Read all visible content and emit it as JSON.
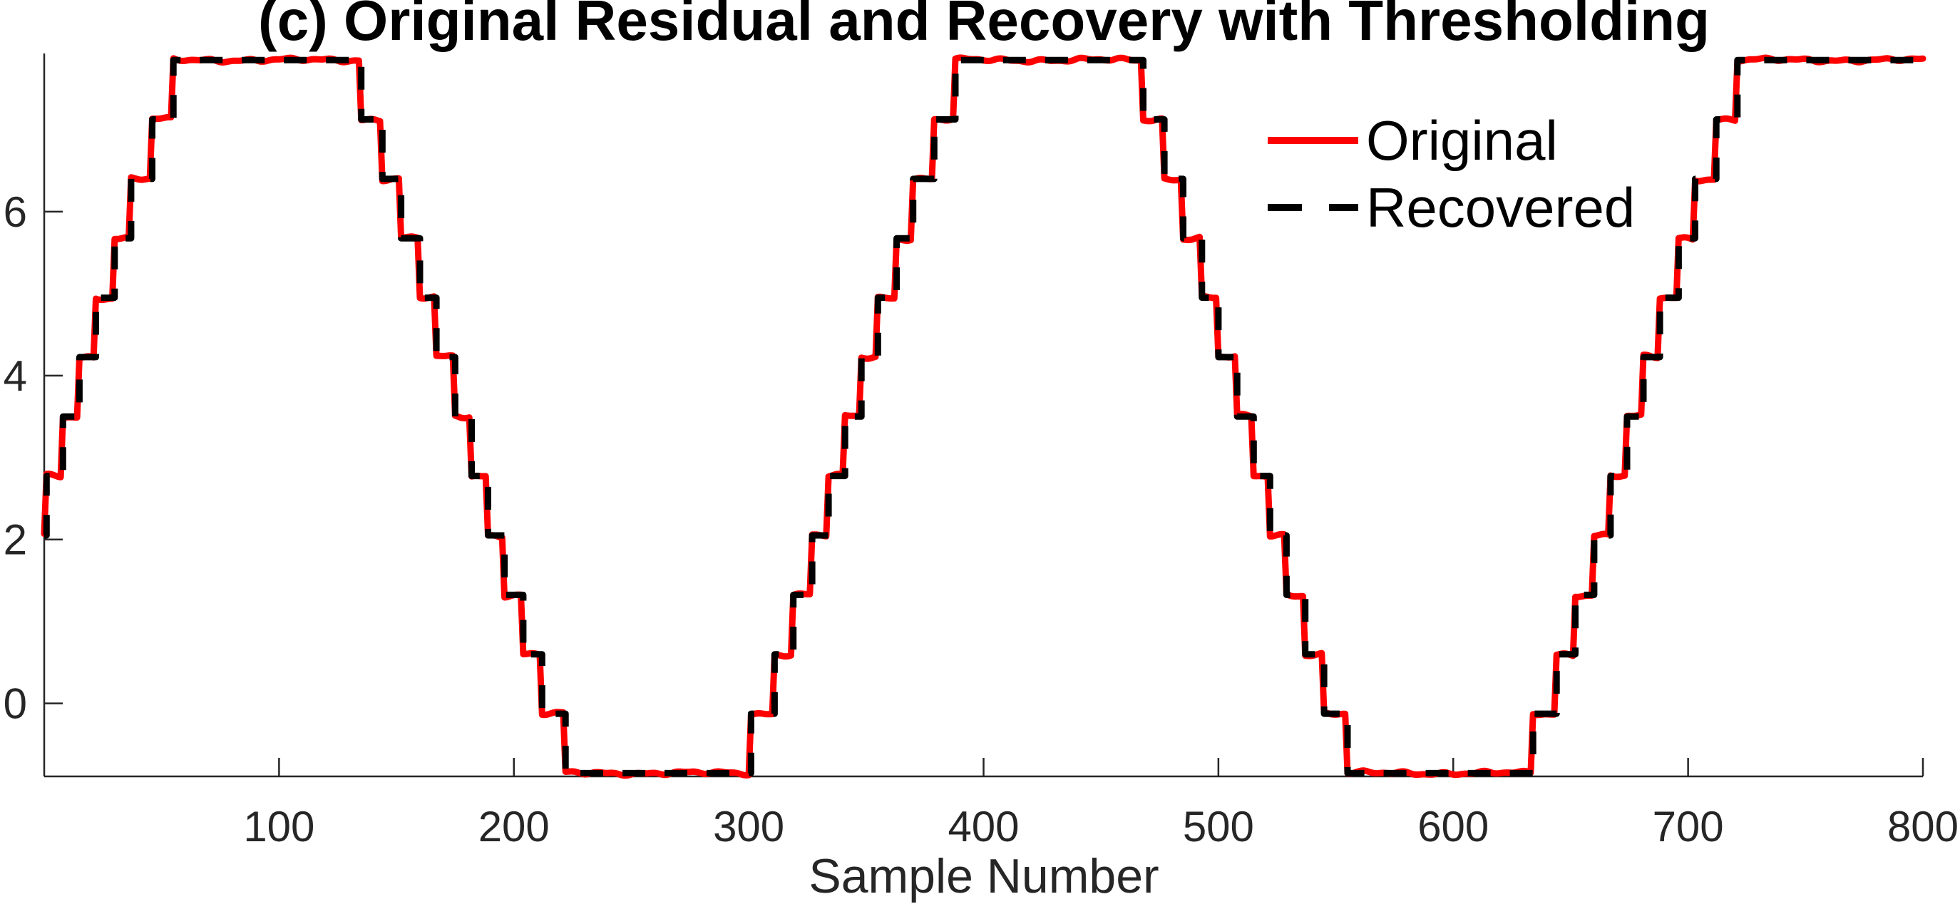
{
  "figure": {
    "background": "#ffffff",
    "axis_color": "#262626",
    "tick_label_color": "#262626"
  },
  "chart_data": {
    "type": "line",
    "title": "(c) Original Residual and Recovery with Thresholding",
    "xlabel": "Sample Number",
    "ylabel": "",
    "xlim": [
      0,
      800
    ],
    "ylim": [
      -0.89,
      7.93
    ],
    "x_ticks": [
      100,
      200,
      300,
      400,
      500,
      600,
      700,
      800
    ],
    "y_ticks": [
      0,
      2,
      4,
      6
    ],
    "grid": false,
    "box": false,
    "legend_position": "upper-right-inside",
    "waveform_description": "clipped sine, period 333 samples, quantized to 13 levels",
    "quantization_levels": [
      -0.85,
      -0.125,
      0.6,
      1.325,
      2.05,
      2.775,
      3.5,
      4.225,
      4.95,
      5.675,
      6.4,
      7.125,
      7.85
    ],
    "x_end": 800,
    "series": [
      {
        "name": "Original",
        "color": "#ff0000",
        "style": "solid",
        "line_width": 9,
        "noise_amplitude": 0.032,
        "steps": [
          [
            0,
            2.05
          ],
          [
            1,
            2.775
          ],
          [
            8,
            3.5
          ],
          [
            15,
            4.225
          ],
          [
            22,
            4.95
          ],
          [
            30,
            5.675
          ],
          [
            37,
            6.4
          ],
          [
            46,
            7.125
          ],
          [
            55,
            7.85
          ],
          [
            135,
            7.125
          ],
          [
            144,
            6.4
          ],
          [
            152,
            5.675
          ],
          [
            160,
            4.95
          ],
          [
            167,
            4.225
          ],
          [
            175,
            3.5
          ],
          [
            182,
            2.775
          ],
          [
            189,
            2.05
          ],
          [
            196,
            1.325
          ],
          [
            204,
            0.6
          ],
          [
            212,
            -0.125
          ],
          [
            222,
            -0.85
          ],
          [
            301,
            -0.125
          ],
          [
            311,
            0.6
          ],
          [
            319,
            1.325
          ],
          [
            327,
            2.05
          ],
          [
            334,
            2.775
          ],
          [
            341,
            3.5
          ],
          [
            348,
            4.225
          ],
          [
            355,
            4.95
          ],
          [
            363,
            5.675
          ],
          [
            370,
            6.4
          ],
          [
            379,
            7.125
          ],
          [
            388,
            7.85
          ],
          [
            468,
            7.125
          ],
          [
            477,
            6.4
          ],
          [
            485,
            5.675
          ],
          [
            493,
            4.95
          ],
          [
            500,
            4.225
          ],
          [
            508,
            3.5
          ],
          [
            515,
            2.775
          ],
          [
            522,
            2.05
          ],
          [
            529,
            1.325
          ],
          [
            537,
            0.6
          ],
          [
            545,
            -0.125
          ],
          [
            555,
            -0.85
          ],
          [
            634,
            -0.125
          ],
          [
            644,
            0.6
          ],
          [
            652,
            1.325
          ],
          [
            660,
            2.05
          ],
          [
            667,
            2.775
          ],
          [
            674,
            3.5
          ],
          [
            681,
            4.225
          ],
          [
            688,
            4.95
          ],
          [
            696,
            5.675
          ],
          [
            703,
            6.4
          ],
          [
            712,
            7.125
          ],
          [
            721,
            7.85
          ]
        ]
      },
      {
        "name": "Recovered",
        "color": "#000000",
        "style": "dashed",
        "line_width": 9,
        "dash": [
          32,
          27
        ],
        "steps": [
          [
            0,
            2.05
          ],
          [
            1,
            2.775
          ],
          [
            8,
            3.5
          ],
          [
            15,
            4.225
          ],
          [
            22,
            4.95
          ],
          [
            30,
            5.675
          ],
          [
            37,
            6.4
          ],
          [
            46,
            7.125
          ],
          [
            55,
            7.85
          ],
          [
            135,
            7.125
          ],
          [
            144,
            6.4
          ],
          [
            152,
            5.675
          ],
          [
            160,
            4.95
          ],
          [
            167,
            4.225
          ],
          [
            175,
            3.5
          ],
          [
            182,
            2.775
          ],
          [
            189,
            2.05
          ],
          [
            196,
            1.325
          ],
          [
            204,
            0.6
          ],
          [
            212,
            -0.125
          ],
          [
            222,
            -0.85
          ],
          [
            301,
            -0.125
          ],
          [
            311,
            0.6
          ],
          [
            319,
            1.325
          ],
          [
            327,
            2.05
          ],
          [
            334,
            2.775
          ],
          [
            341,
            3.5
          ],
          [
            348,
            4.225
          ],
          [
            355,
            4.95
          ],
          [
            363,
            5.675
          ],
          [
            370,
            6.4
          ],
          [
            379,
            7.125
          ],
          [
            388,
            7.85
          ],
          [
            468,
            7.125
          ],
          [
            477,
            6.4
          ],
          [
            485,
            5.675
          ],
          [
            493,
            4.95
          ],
          [
            500,
            4.225
          ],
          [
            508,
            3.5
          ],
          [
            515,
            2.775
          ],
          [
            522,
            2.05
          ],
          [
            529,
            1.325
          ],
          [
            537,
            0.6
          ],
          [
            545,
            -0.125
          ],
          [
            555,
            -0.85
          ],
          [
            634,
            -0.125
          ],
          [
            644,
            0.6
          ],
          [
            652,
            1.325
          ],
          [
            660,
            2.05
          ],
          [
            667,
            2.775
          ],
          [
            674,
            3.5
          ],
          [
            681,
            4.225
          ],
          [
            688,
            4.95
          ],
          [
            696,
            5.675
          ],
          [
            703,
            6.4
          ],
          [
            712,
            7.125
          ],
          [
            721,
            7.85
          ]
        ]
      }
    ]
  },
  "legend": {
    "items": [
      {
        "label": "Original",
        "color": "#ff0000",
        "style": "solid"
      },
      {
        "label": "Recovered",
        "color": "#000000",
        "style": "dashed"
      }
    ]
  }
}
